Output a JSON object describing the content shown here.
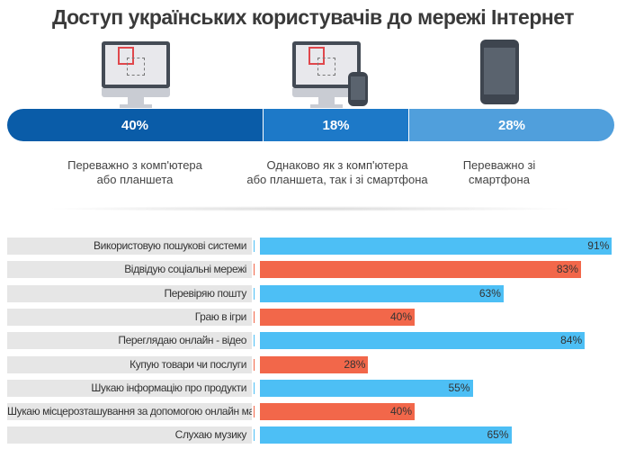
{
  "title": "Доступ українських користувачів до мережі Інтернет",
  "chart_data": [
    {
      "type": "bar",
      "orientation": "horizontal-stacked",
      "categories": [
        "Переважно з комп'ютера або планшета",
        "Однаково як з комп'ютера або планшета, так і зі смартфона",
        "Переважно зі смартфона"
      ],
      "values": [
        40,
        18,
        28
      ],
      "labels": [
        "40%",
        "18%",
        "28%"
      ],
      "captions": [
        [
          "Переважно з комп'ютера",
          "або планшета"
        ],
        [
          "Однаково як з комп'ютера",
          "або планшета, так і зі смартфона"
        ],
        [
          "Переважно зі",
          "смартфона"
        ]
      ],
      "icons": [
        "desktop-monitor-icon",
        "monitor-and-phone-icon",
        "smartphone-icon"
      ],
      "colors": [
        "#0a5ca8",
        "#1d79c8",
        "#509fdc"
      ]
    },
    {
      "type": "bar",
      "orientation": "horizontal",
      "xlim": [
        0,
        100
      ],
      "categories": [
        "Використовую пошукові системи",
        "Відвідую соціальні мережі",
        "Перевіряю пошту",
        "Граю в ігри",
        "Переглядаю онлайн - відео",
        "Купую товари чи послуги",
        "Шукаю інформацію про продукти",
        "Шукаю місцерозташування за допомогою онлайн мап",
        "Слухаю музику"
      ],
      "values": [
        91,
        83,
        63,
        40,
        84,
        28,
        55,
        40,
        65
      ],
      "labels": [
        "91%",
        "83%",
        "63%",
        "40%",
        "84%",
        "28%",
        "55%",
        "40%",
        "65%"
      ],
      "colors": [
        "#4dbff5",
        "#f2674a",
        "#4dbff5",
        "#f2674a",
        "#4dbff5",
        "#f2674a",
        "#4dbff5",
        "#f2674a",
        "#4dbff5"
      ]
    }
  ]
}
